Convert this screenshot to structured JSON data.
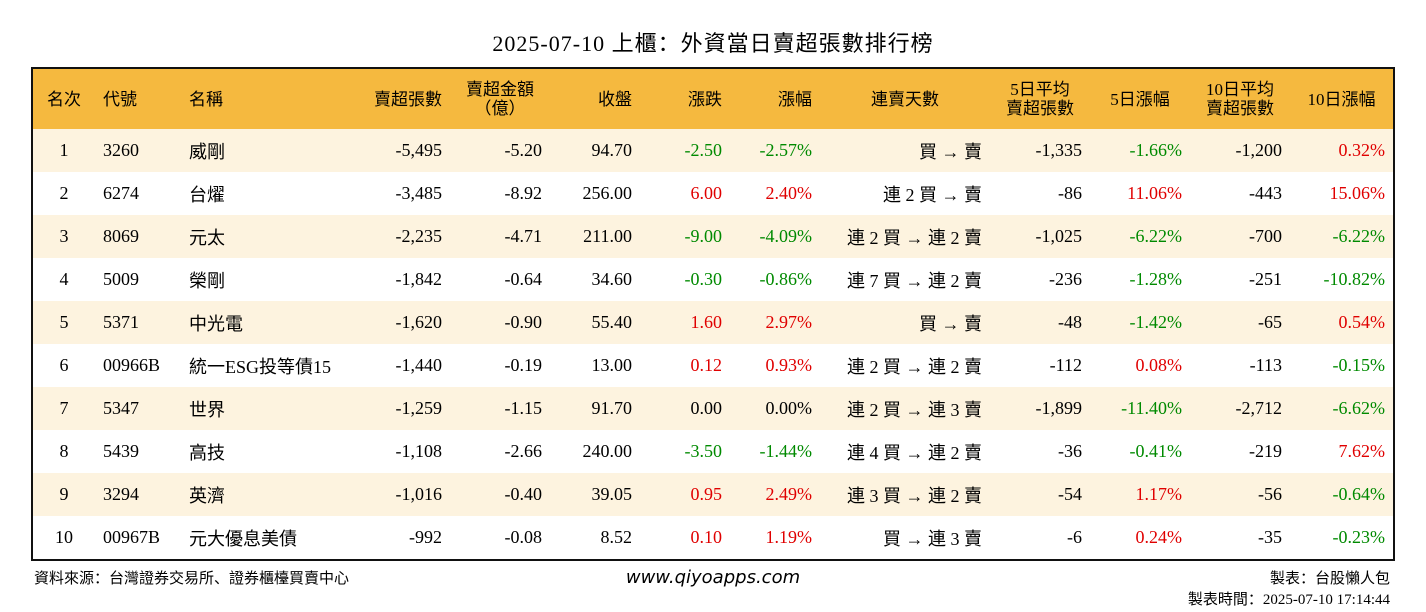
{
  "title": "2025-07-10 上櫃：外資當日賣超張數排行榜",
  "headers": {
    "rank": "名次",
    "code": "代號",
    "name": "名稱",
    "sell_lots": "賣超張數",
    "sell_amt_1": "賣超金額",
    "sell_amt_2": "（億）",
    "close": "收盤",
    "change": "漲跌",
    "pct": "漲幅",
    "streak": "連賣天數",
    "avg5_1": "5日平均",
    "avg5_2": "賣超張數",
    "pct5": "5日漲幅",
    "avg10_1": "10日平均",
    "avg10_2": "賣超張數",
    "pct10": "10日漲幅"
  },
  "colors": {
    "header_bg": "#f5b93f",
    "odd_row_bg": "#fdf3df",
    "up": "#e00000",
    "down": "#008a00"
  },
  "rows": [
    {
      "rank": "1",
      "code": "3260",
      "name": "威剛",
      "sell_lots": "-5,495",
      "sell_amt": "-5.20",
      "close": "94.70",
      "change": "-2.50",
      "change_dir": "down",
      "pct": "-2.57%",
      "pct_dir": "down",
      "streak": "買 → 賣",
      "avg5": "-1,335",
      "pct5": "-1.66%",
      "pct5_dir": "down",
      "avg10": "-1,200",
      "pct10": "0.32%",
      "pct10_dir": "up"
    },
    {
      "rank": "2",
      "code": "6274",
      "name": "台燿",
      "sell_lots": "-3,485",
      "sell_amt": "-8.92",
      "close": "256.00",
      "change": "6.00",
      "change_dir": "up",
      "pct": "2.40%",
      "pct_dir": "up",
      "streak": "連 2 買 → 賣",
      "avg5": "-86",
      "pct5": "11.06%",
      "pct5_dir": "up",
      "avg10": "-443",
      "pct10": "15.06%",
      "pct10_dir": "up"
    },
    {
      "rank": "3",
      "code": "8069",
      "name": "元太",
      "sell_lots": "-2,235",
      "sell_amt": "-4.71",
      "close": "211.00",
      "change": "-9.00",
      "change_dir": "down",
      "pct": "-4.09%",
      "pct_dir": "down",
      "streak": "連 2 買 → 連 2 賣",
      "avg5": "-1,025",
      "pct5": "-6.22%",
      "pct5_dir": "down",
      "avg10": "-700",
      "pct10": "-6.22%",
      "pct10_dir": "down"
    },
    {
      "rank": "4",
      "code": "5009",
      "name": "榮剛",
      "sell_lots": "-1,842",
      "sell_amt": "-0.64",
      "close": "34.60",
      "change": "-0.30",
      "change_dir": "down",
      "pct": "-0.86%",
      "pct_dir": "down",
      "streak": "連 7 買 → 連 2 賣",
      "avg5": "-236",
      "pct5": "-1.28%",
      "pct5_dir": "down",
      "avg10": "-251",
      "pct10": "-10.82%",
      "pct10_dir": "down"
    },
    {
      "rank": "5",
      "code": "5371",
      "name": "中光電",
      "sell_lots": "-1,620",
      "sell_amt": "-0.90",
      "close": "55.40",
      "change": "1.60",
      "change_dir": "up",
      "pct": "2.97%",
      "pct_dir": "up",
      "streak": "買 → 賣",
      "avg5": "-48",
      "pct5": "-1.42%",
      "pct5_dir": "down",
      "avg10": "-65",
      "pct10": "0.54%",
      "pct10_dir": "up"
    },
    {
      "rank": "6",
      "code": "00966B",
      "name": "統一ESG投等債15",
      "sell_lots": "-1,440",
      "sell_amt": "-0.19",
      "close": "13.00",
      "change": "0.12",
      "change_dir": "up",
      "pct": "0.93%",
      "pct_dir": "up",
      "streak": "連 2 買 → 連 2 賣",
      "avg5": "-112",
      "pct5": "0.08%",
      "pct5_dir": "up",
      "avg10": "-113",
      "pct10": "-0.15%",
      "pct10_dir": "down"
    },
    {
      "rank": "7",
      "code": "5347",
      "name": "世界",
      "sell_lots": "-1,259",
      "sell_amt": "-1.15",
      "close": "91.70",
      "change": "0.00",
      "change_dir": "flat",
      "pct": "0.00%",
      "pct_dir": "flat",
      "streak": "連 2 買 → 連 3 賣",
      "avg5": "-1,899",
      "pct5": "-11.40%",
      "pct5_dir": "down",
      "avg10": "-2,712",
      "pct10": "-6.62%",
      "pct10_dir": "down"
    },
    {
      "rank": "8",
      "code": "5439",
      "name": "高技",
      "sell_lots": "-1,108",
      "sell_amt": "-2.66",
      "close": "240.00",
      "change": "-3.50",
      "change_dir": "down",
      "pct": "-1.44%",
      "pct_dir": "down",
      "streak": "連 4 買 → 連 2 賣",
      "avg5": "-36",
      "pct5": "-0.41%",
      "pct5_dir": "down",
      "avg10": "-219",
      "pct10": "7.62%",
      "pct10_dir": "up"
    },
    {
      "rank": "9",
      "code": "3294",
      "name": "英濟",
      "sell_lots": "-1,016",
      "sell_amt": "-0.40",
      "close": "39.05",
      "change": "0.95",
      "change_dir": "up",
      "pct": "2.49%",
      "pct_dir": "up",
      "streak": "連 3 買 → 連 2 賣",
      "avg5": "-54",
      "pct5": "1.17%",
      "pct5_dir": "up",
      "avg10": "-56",
      "pct10": "-0.64%",
      "pct10_dir": "down"
    },
    {
      "rank": "10",
      "code": "00967B",
      "name": "元大優息美債",
      "sell_lots": "-992",
      "sell_amt": "-0.08",
      "close": "8.52",
      "change": "0.10",
      "change_dir": "up",
      "pct": "1.19%",
      "pct_dir": "up",
      "streak": "買 → 連 3 賣",
      "avg5": "-6",
      "pct5": "0.24%",
      "pct5_dir": "up",
      "avg10": "-35",
      "pct10": "-0.23%",
      "pct10_dir": "down"
    }
  ],
  "footer": {
    "source": "資料來源：台灣證券交易所、證券櫃檯買賣中心",
    "website": "www.qiyoapps.com",
    "author": "製表：台股懶人包",
    "made_time": "製表時間：2025-07-10 17:14:44"
  }
}
